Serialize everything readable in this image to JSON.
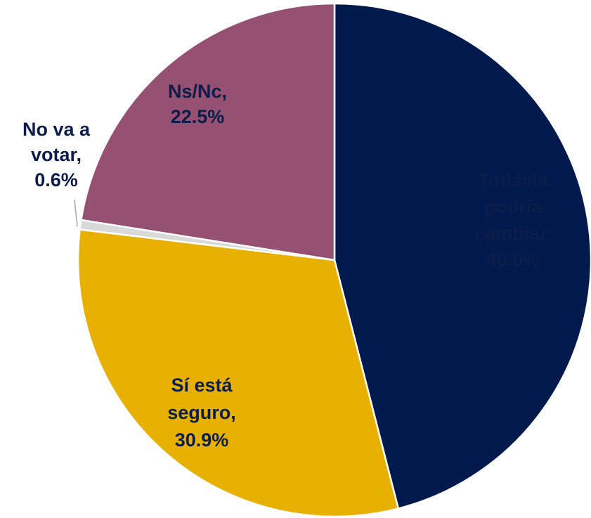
{
  "chart_data": {
    "type": "pie",
    "labels": [
      [
        "Todavía",
        "podría",
        "cambiar,"
      ],
      [
        "Sí está",
        "seguro,"
      ],
      [
        "No va a",
        "votar,"
      ],
      [
        "Ns/Nc,"
      ]
    ],
    "values": [
      46.0,
      30.9,
      0.6,
      22.5
    ],
    "value_labels": [
      "46.0%",
      "30.9%",
      "0.6%",
      "22.5%"
    ],
    "colors": [
      "#001a4e",
      "#e8b000",
      "#d9d9d9",
      "#955072"
    ]
  }
}
